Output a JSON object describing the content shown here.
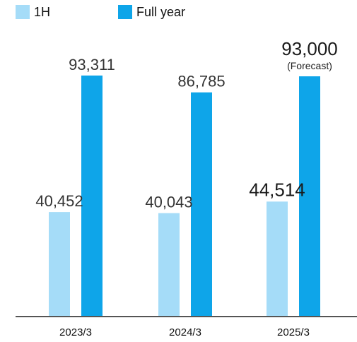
{
  "chart_data": {
    "type": "bar",
    "title": "",
    "xlabel": "",
    "ylabel": "",
    "categories": [
      "2023/3",
      "2024/3",
      "2025/3"
    ],
    "series": [
      {
        "name": "1H",
        "color": "#a5dcf8",
        "values": [
          40452,
          40043,
          44514
        ],
        "value_labels": [
          "40,452",
          "40,043",
          "44,514"
        ]
      },
      {
        "name": "Full year",
        "color": "#0ea5e9",
        "values": [
          93311,
          86785,
          93000
        ],
        "value_labels": [
          "93,311",
          "86,785",
          "93,000"
        ]
      }
    ],
    "annotations": [
      {
        "series": 1,
        "category": 2,
        "text": "(Forecast)"
      }
    ],
    "ylim": [
      0,
      100000
    ],
    "grid": false,
    "legend": "top-left"
  }
}
